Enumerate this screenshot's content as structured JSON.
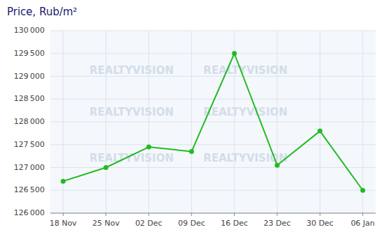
{
  "chart_data": {
    "type": "line",
    "title": "Price, Rub/m²",
    "categories": [
      "18 Nov",
      "25 Nov",
      "02 Dec",
      "09 Dec",
      "16 Dec",
      "23 Dec",
      "30 Dec",
      "06 Jan"
    ],
    "values": [
      126700,
      127000,
      127450,
      127350,
      129500,
      127050,
      127800,
      126500
    ],
    "color": "#22bb22",
    "marker": "circle",
    "ylim": [
      126000,
      130000
    ],
    "yticks": [
      {
        "value": 126000,
        "label": "126 000"
      },
      {
        "value": 126500,
        "label": "126 500"
      },
      {
        "value": 127000,
        "label": "127 000"
      },
      {
        "value": 127500,
        "label": "127 500"
      },
      {
        "value": 128000,
        "label": "128 000"
      },
      {
        "value": 128500,
        "label": "128 500"
      },
      {
        "value": 129000,
        "label": "129 000"
      },
      {
        "value": 129500,
        "label": "129 500"
      },
      {
        "value": 130000,
        "label": "130 000"
      }
    ],
    "grid": true,
    "annotations": [
      "REALTYVISION"
    ]
  }
}
